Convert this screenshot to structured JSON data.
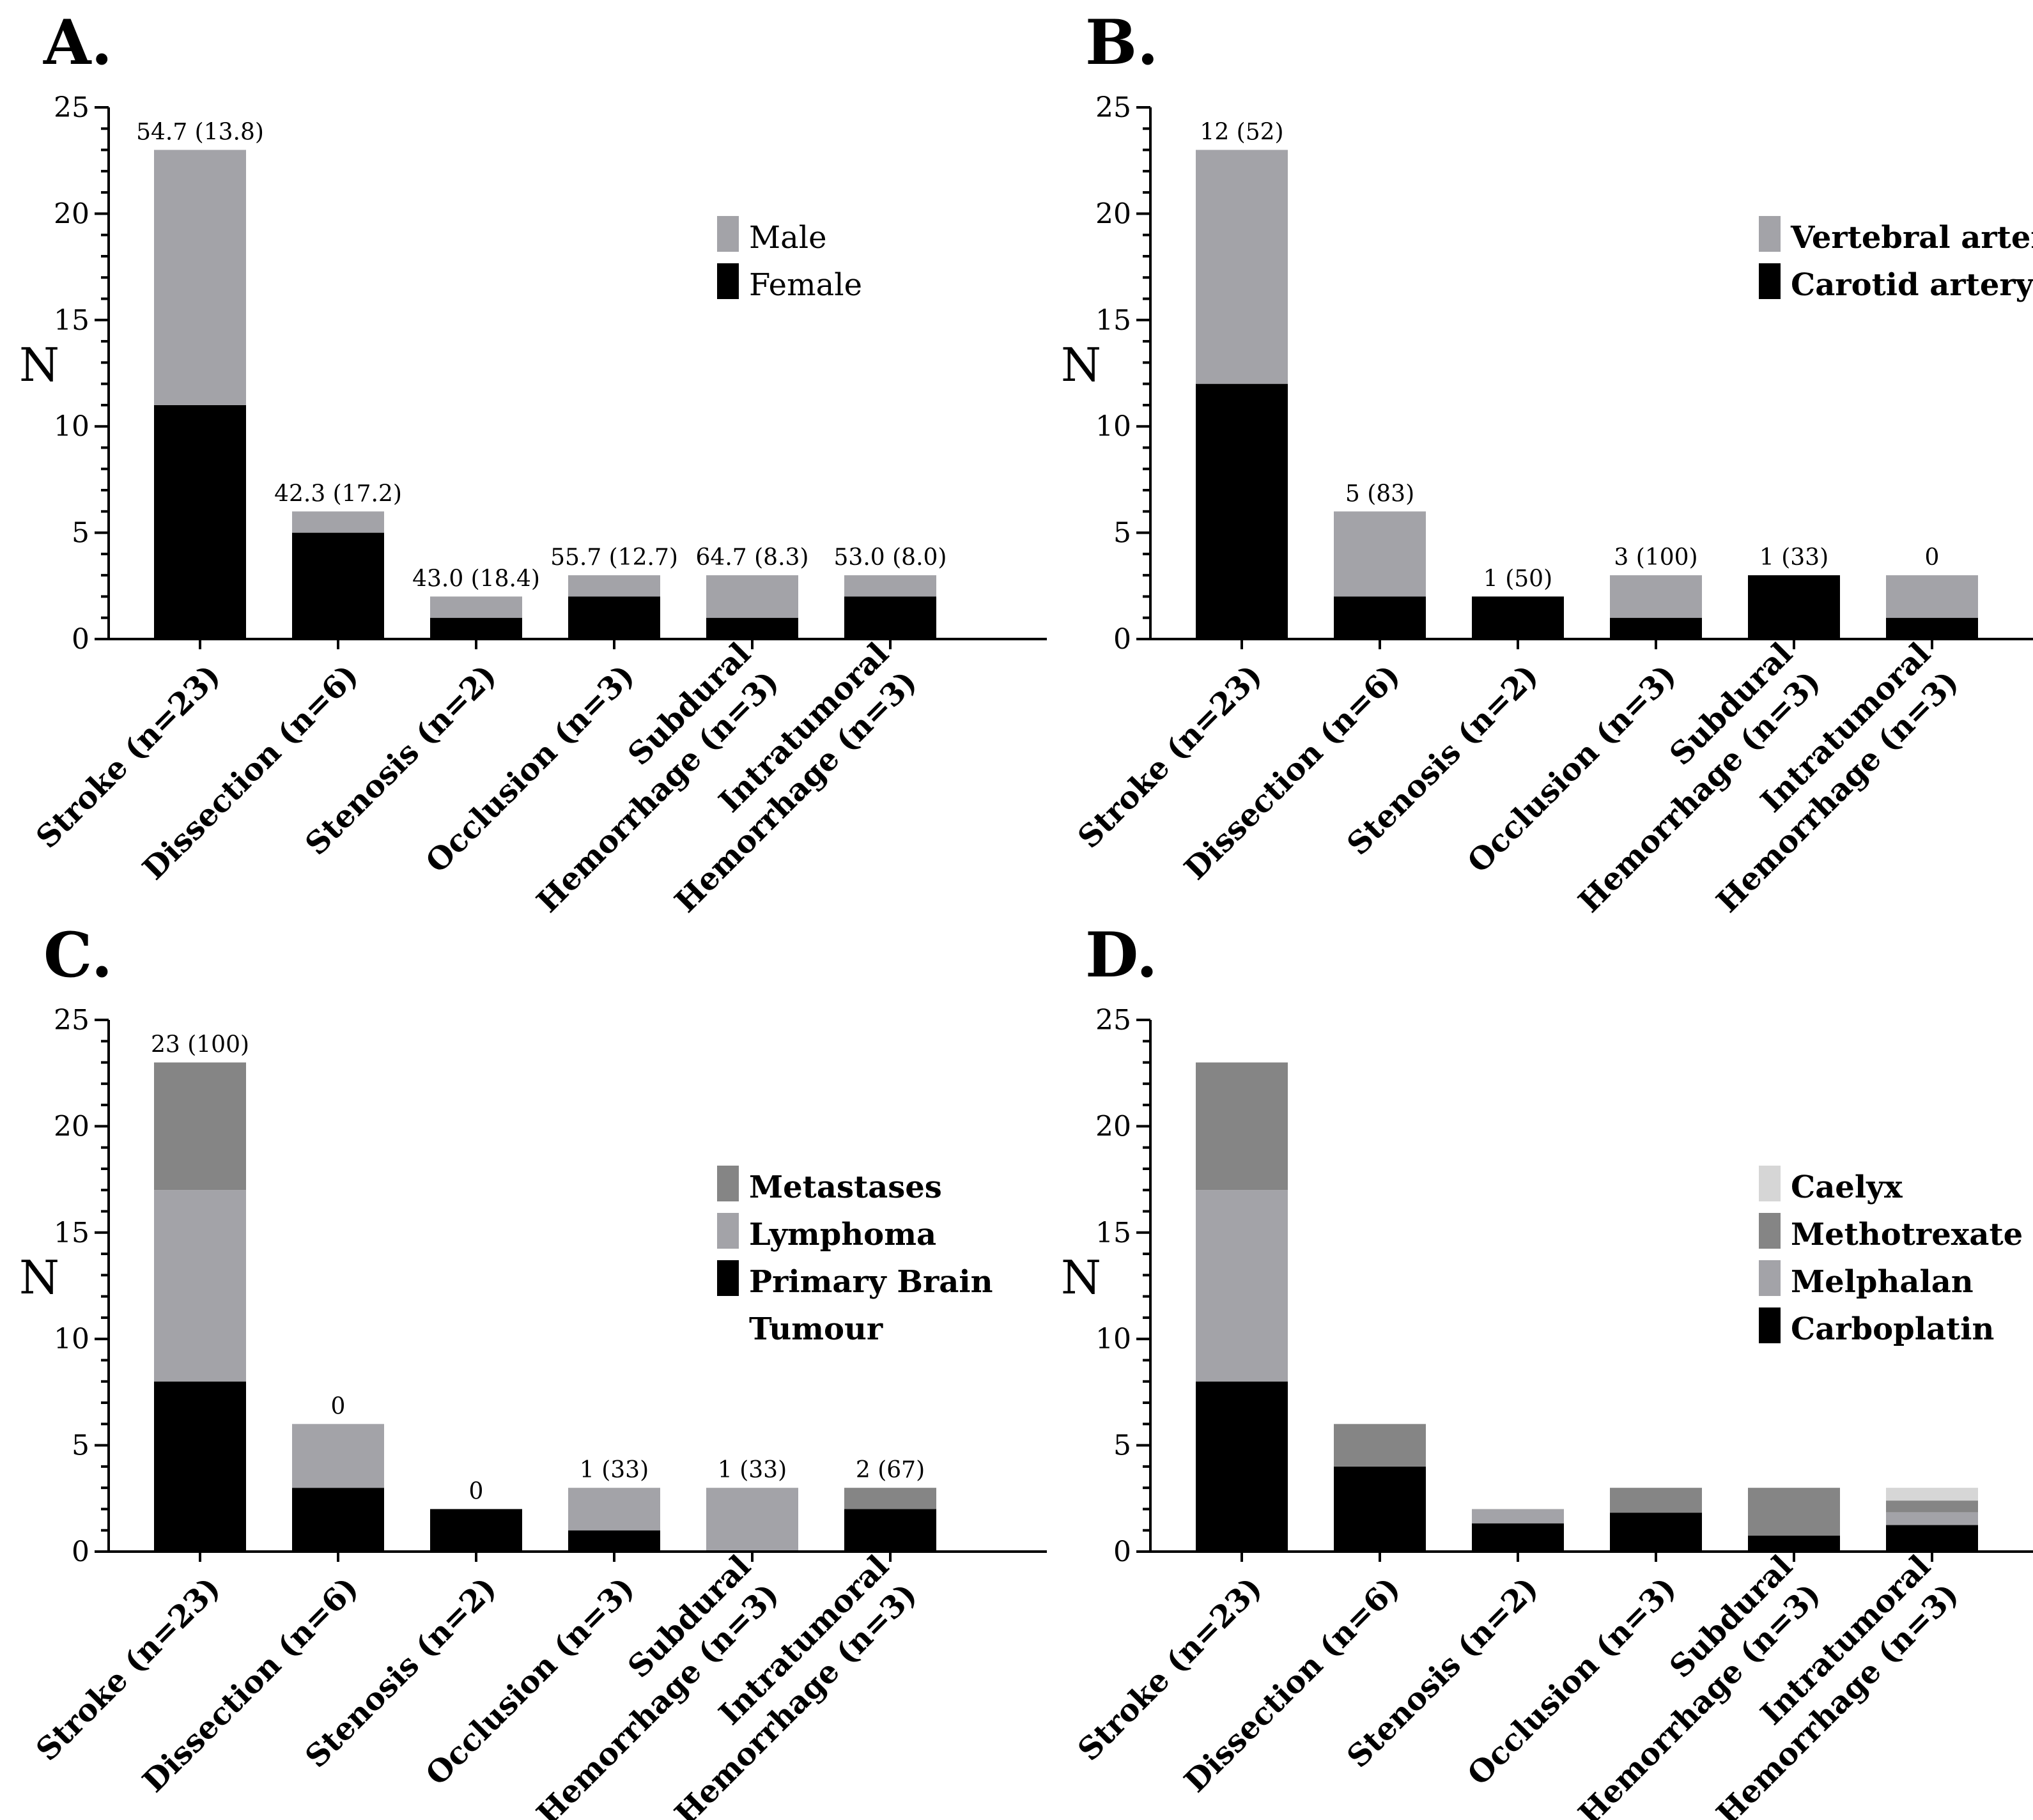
{
  "colors": {
    "black": "#000000",
    "gray_light": "#a3a3a8",
    "gray_mid": "#a0a0a0",
    "gray_dark": "#858585",
    "gray_very_light": "#d6d6d6"
  },
  "categories": [
    [
      "Stroke (n=23)"
    ],
    [
      "Dissection (n=6)"
    ],
    [
      "Stenosis (n=2)"
    ],
    [
      "Occlusion (n=3)"
    ],
    [
      "Subdural",
      "Hemorrhage (n=3)"
    ],
    [
      "Intratumoral",
      "Hemorrhage (n=3)"
    ]
  ],
  "chart_data": [
    {
      "panel": "A.",
      "type": "bar",
      "stacked": true,
      "ylabel": "N",
      "ylim": [
        0,
        25
      ],
      "yticks": [
        0,
        5,
        10,
        15,
        20,
        25
      ],
      "categories": [
        "Stroke (n=23)",
        "Dissection (n=6)",
        "Stenosis (n=2)",
        "Occlusion (n=3)",
        "Subdural Hemorrhage (n=3)",
        "Intratumoral Hemorrhage (n=3)"
      ],
      "series": [
        {
          "name": "Female",
          "color": "#000000",
          "values": [
            11,
            5,
            1,
            2,
            1,
            2
          ]
        },
        {
          "name": "Male",
          "color": "#a3a3a8",
          "values": [
            12,
            1,
            1,
            1,
            2,
            1
          ]
        }
      ],
      "data_labels": [
        "54.7 (13.8)",
        "42.3 (17.2)",
        "43.0 (18.4)",
        "55.7 (12.7)",
        "64.7 (8.3)",
        "53.0 (8.0)"
      ],
      "legend": [
        {
          "label": "Male",
          "color": "#a3a3a8"
        },
        {
          "label": "Female",
          "color": "#000000"
        }
      ],
      "legend_bold": false
    },
    {
      "panel": "B.",
      "type": "bar",
      "stacked": true,
      "ylabel": "N",
      "ylim": [
        0,
        25
      ],
      "yticks": [
        0,
        5,
        10,
        15,
        20,
        25
      ],
      "categories": [
        "Stroke (n=23)",
        "Dissection (n=6)",
        "Stenosis (n=2)",
        "Occlusion (n=3)",
        "Subdural Hemorrhage (n=3)",
        "Intratumoral Hemorrhage (n=3)"
      ],
      "series": [
        {
          "name": "Carotid artery",
          "color": "#000000",
          "values": [
            12,
            2,
            2,
            1,
            3,
            1
          ]
        },
        {
          "name": "Vertebral artery",
          "color": "#a3a3a8",
          "values": [
            11,
            4,
            0,
            2,
            0,
            2
          ]
        }
      ],
      "data_labels": [
        "12 (52)",
        "5 (83)",
        "1 (50)",
        "3 (100)",
        "1 (33)",
        "0"
      ],
      "legend": [
        {
          "label": "Vertebral artery",
          "color": "#a3a3a8"
        },
        {
          "label": "Carotid artery",
          "color": "#000000"
        }
      ],
      "legend_bold": true
    },
    {
      "panel": "C.",
      "type": "bar",
      "stacked": true,
      "ylabel": "N",
      "ylim": [
        0,
        25
      ],
      "yticks": [
        0,
        5,
        10,
        15,
        20,
        25
      ],
      "categories": [
        "Stroke (n=23)",
        "Dissection (n=6)",
        "Stenosis (n=2)",
        "Occlusion (n=3)",
        "Subdural Hemorrhage (n=3)",
        "Intratumoral Hemorrhage (n=3)"
      ],
      "series": [
        {
          "name": "Primary Brain Tumour",
          "color": "#000000",
          "values": [
            8,
            3,
            2,
            1,
            0,
            2
          ]
        },
        {
          "name": "Lymphoma",
          "color": "#a3a3a8",
          "values": [
            9,
            3,
            0,
            2,
            3,
            0
          ]
        },
        {
          "name": "Metastases",
          "color": "#858585",
          "values": [
            6,
            0,
            0,
            0,
            0,
            1
          ]
        }
      ],
      "data_labels": [
        "23 (100)",
        "0",
        "0",
        "1 (33)",
        "1 (33)",
        "2 (67)"
      ],
      "legend": [
        {
          "label": "Metastases",
          "color": "#858585"
        },
        {
          "label": "Lymphoma",
          "color": "#a3a3a8"
        },
        {
          "label": "Primary Brain",
          "color": "#000000"
        },
        {
          "label": "Tumour",
          "color": null
        }
      ],
      "legend_bold": true
    },
    {
      "panel": "D.",
      "type": "bar",
      "stacked": true,
      "ylabel": "N",
      "ylim": [
        0,
        25
      ],
      "yticks": [
        0,
        5,
        10,
        15,
        20,
        25
      ],
      "categories": [
        "Stroke (n=23)",
        "Dissection (n=6)",
        "Stenosis (n=2)",
        "Occlusion (n=3)",
        "Subdural Hemorrhage (n=3)",
        "Intratumoral Hemorrhage (n=3)"
      ],
      "series": [
        {
          "name": "Carboplatin",
          "color": "#000000",
          "values": [
            8,
            4,
            1.33,
            1.83,
            0.75,
            1.25
          ]
        },
        {
          "name": "Melphalan",
          "color": "#a3a3a8",
          "values": [
            9,
            0,
            0.67,
            0,
            0,
            0.6
          ]
        },
        {
          "name": "Methotrexate",
          "color": "#858585",
          "values": [
            6,
            2,
            0,
            1.17,
            2.25,
            0.55
          ]
        },
        {
          "name": "Caelyx",
          "color": "#d6d6d6",
          "values": [
            0,
            0,
            0,
            0,
            0,
            0.6
          ]
        }
      ],
      "data_labels": [],
      "legend": [
        {
          "label": "Caelyx",
          "color": "#d6d6d6"
        },
        {
          "label": "Methotrexate",
          "color": "#858585"
        },
        {
          "label": "Melphalan",
          "color": "#a3a3a8"
        },
        {
          "label": "Carboplatin",
          "color": "#000000"
        }
      ],
      "legend_bold": true
    }
  ]
}
